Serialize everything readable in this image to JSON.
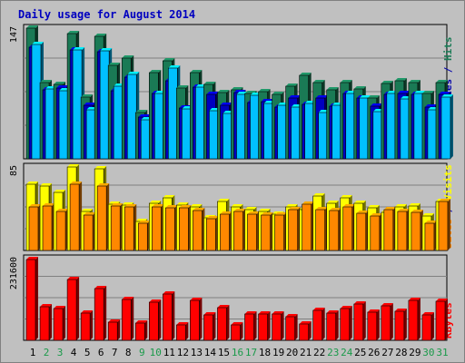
{
  "chart_data": {
    "type": "bar",
    "title": "Daily usage for August 2014",
    "categories": [
      "1",
      "2",
      "3",
      "4",
      "5",
      "6",
      "7",
      "8",
      "9",
      "10",
      "11",
      "12",
      "13",
      "14",
      "15",
      "16",
      "17",
      "18",
      "19",
      "20",
      "21",
      "22",
      "23",
      "24",
      "25",
      "26",
      "27",
      "28",
      "29",
      "30",
      "31"
    ],
    "weekend_days": [
      "2",
      "3",
      "9",
      "10",
      "16",
      "17",
      "23",
      "24",
      "30",
      "31"
    ],
    "panels": [
      {
        "id": "top",
        "max_label": "147",
        "ylim": [
          0,
          147
        ],
        "right_labels": [
          {
            "text": "Pages",
            "color": "#00b0ff"
          },
          {
            "text": " / ",
            "color": "#0000aa"
          },
          {
            "text": "Files",
            "color": "#0000aa"
          },
          {
            "text": " / ",
            "color": "#0000aa"
          },
          {
            "text": "Hits",
            "color": "#1a7a55"
          }
        ],
        "series": [
          {
            "name": "Hits",
            "color": "#1a7a55",
            "values": [
              147,
              86,
              84,
              141,
              69,
              138,
              105,
              113,
              52,
              97,
              110,
              80,
              97,
              84,
              75,
              78,
              73,
              76,
              72,
              82,
              94,
              86,
              78,
              86,
              79,
              68,
              85,
              88,
              86,
              74,
              86
            ]
          },
          {
            "name": "Files",
            "color": "#0000c0",
            "values": [
              126,
              78,
              80,
              122,
              60,
              120,
              77,
              92,
              47,
              74,
              88,
              57,
              81,
              72,
              60,
              75,
              63,
              64,
              58,
              68,
              61,
              68,
              59,
              73,
              68,
              59,
              72,
              73,
              72,
              58,
              72
            ]
          },
          {
            "name": "Pages",
            "color": "#00c0ff",
            "values": [
              129,
              79,
              77,
              122,
              55,
              121,
              82,
              95,
              44,
              73,
              102,
              56,
              81,
              54,
              51,
              72,
              71,
              62,
              60,
              58,
              62,
              52,
              60,
              73,
              68,
              53,
              73,
              67,
              74,
              55,
              69
            ]
          }
        ]
      },
      {
        "id": "middle",
        "max_label": "85",
        "ylim": [
          0,
          85
        ],
        "right_labels": [
          {
            "text": "Sites",
            "color": "#ff8800"
          },
          {
            "text": " / ",
            "color": "#0000aa"
          },
          {
            "text": "Visits",
            "color": "#ffff00"
          }
        ],
        "series": [
          {
            "name": "Visits",
            "color": "#ffff00",
            "values": [
              67,
              66,
              59,
              85,
              40,
              83,
              47,
              46,
              30,
              48,
              54,
              46,
              44,
              33,
              50,
              44,
              42,
              40,
              37,
              44,
              42,
              55,
              48,
              54,
              48,
              43,
              39,
              44,
              45,
              35,
              50
            ]
          },
          {
            "name": "Sites",
            "color": "#ff8800",
            "values": [
              44,
              45,
              40,
              67,
              36,
              66,
              45,
              44,
              28,
              44,
              43,
              43,
              41,
              32,
              37,
              40,
              37,
              36,
              36,
              42,
              47,
              42,
              41,
              44,
              38,
              35,
              42,
              40,
              39,
              28,
              50
            ]
          }
        ]
      },
      {
        "id": "bottom",
        "max_label": "231600",
        "ylim": [
          0,
          231600
        ],
        "right_labels": [
          {
            "text": "KBytes",
            "color": "#ff0000"
          }
        ],
        "series": [
          {
            "name": "KBytes",
            "color": "#ff0000",
            "values": [
              228000,
              94000,
              91000,
              173000,
              77000,
              147000,
              52000,
              116000,
              49000,
              107000,
              130000,
              43000,
              114000,
              71000,
              93000,
              45000,
              75000,
              74000,
              75000,
              66000,
              47000,
              84000,
              78000,
              90000,
              104000,
              79000,
              99000,
              82000,
              114000,
              72000,
              110000
            ]
          }
        ]
      }
    ]
  }
}
